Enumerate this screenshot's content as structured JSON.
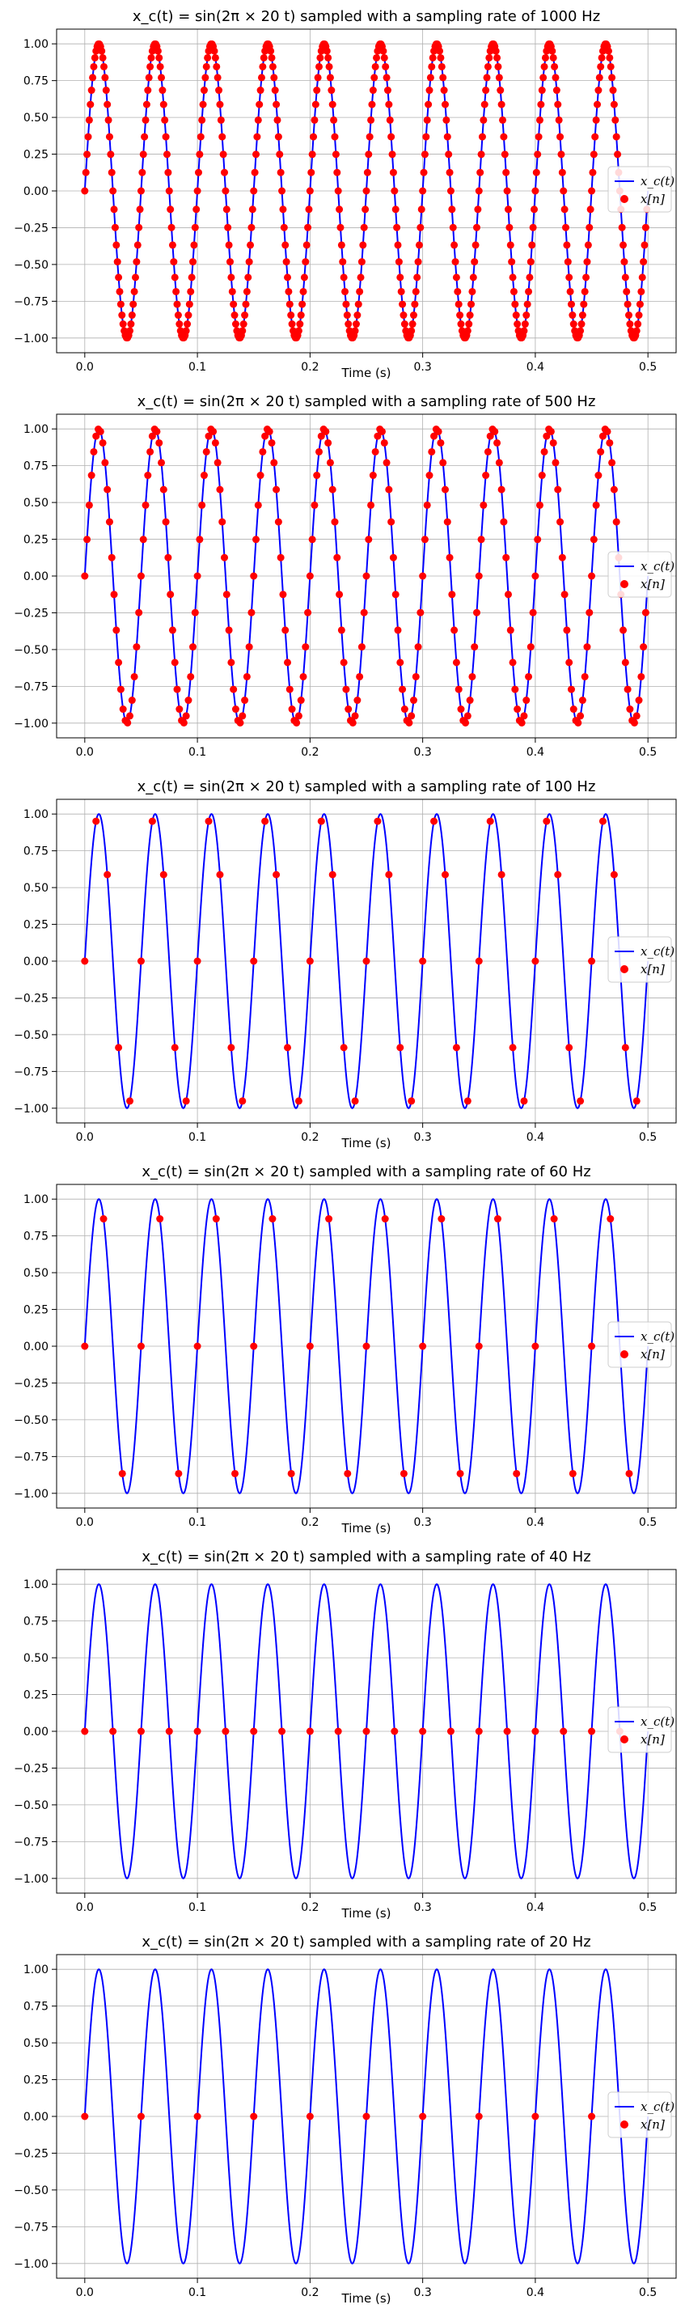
{
  "chart_data": [
    {
      "type": "line",
      "title": "x_c(t) = sin(2π × 20 t) sampled with a sampling rate of 1000 Hz",
      "signal": {
        "name": "x_c(t)",
        "frequency_hz": 20,
        "t_range": [
          0,
          0.5
        ],
        "color": "#0000ff"
      },
      "samples": {
        "name": "x[n]",
        "sampling_rate_hz": 1000,
        "color": "#ff0000"
      },
      "xlabel": "Time (s)",
      "ylabel": "",
      "xlim": [
        -0.025,
        0.525
      ],
      "ylim": [
        -1.1,
        1.1
      ],
      "xticks": [
        "0.0",
        "0.1",
        "0.2",
        "0.3",
        "0.4",
        "0.5"
      ],
      "yticks": [
        "1.00",
        "0.75",
        "0.50",
        "0.25",
        "0.00",
        "−0.25",
        "−0.50",
        "−0.75",
        "−1.00"
      ],
      "grid": true,
      "legend": "center-right"
    },
    {
      "type": "line",
      "title": "x_c(t) = sin(2π × 20 t) sampled with a sampling rate of 500 Hz",
      "signal": {
        "name": "x_c(t)",
        "frequency_hz": 20,
        "t_range": [
          0,
          0.5
        ],
        "color": "#0000ff"
      },
      "samples": {
        "name": "x[n]",
        "sampling_rate_hz": 500,
        "color": "#ff0000"
      },
      "xlabel": "",
      "ylabel": "",
      "xlim": [
        -0.025,
        0.525
      ],
      "ylim": [
        -1.1,
        1.1
      ],
      "xticks": [
        "0.0",
        "0.1",
        "0.2",
        "0.3",
        "0.4",
        "0.5"
      ],
      "yticks": [
        "1.00",
        "0.75",
        "0.50",
        "0.25",
        "0.00",
        "−0.25",
        "−0.50",
        "−0.75",
        "−1.00"
      ],
      "grid": true,
      "legend": "center-right"
    },
    {
      "type": "line",
      "title": "x_c(t) = sin(2π × 20 t) sampled with a sampling rate of 100 Hz",
      "signal": {
        "name": "x_c(t)",
        "frequency_hz": 20,
        "t_range": [
          0,
          0.5
        ],
        "color": "#0000ff"
      },
      "samples": {
        "name": "x[n]",
        "sampling_rate_hz": 100,
        "color": "#ff0000"
      },
      "xlabel": "Time (s)",
      "ylabel": "",
      "xlim": [
        -0.025,
        0.525
      ],
      "ylim": [
        -1.1,
        1.1
      ],
      "xticks": [
        "0.0",
        "0.1",
        "0.2",
        "0.3",
        "0.4",
        "0.5"
      ],
      "yticks": [
        "1.00",
        "0.75",
        "0.50",
        "0.25",
        "0.00",
        "−0.25",
        "−0.50",
        "−0.75",
        "−1.00"
      ],
      "grid": true,
      "legend": "center-right"
    },
    {
      "type": "line",
      "title": "x_c(t) = sin(2π × 20 t) sampled with a sampling rate of 60 Hz",
      "signal": {
        "name": "x_c(t)",
        "frequency_hz": 20,
        "t_range": [
          0,
          0.5
        ],
        "color": "#0000ff"
      },
      "samples": {
        "name": "x[n]",
        "sampling_rate_hz": 60,
        "color": "#ff0000"
      },
      "xlabel": "Time (s)",
      "ylabel": "",
      "xlim": [
        -0.025,
        0.525
      ],
      "ylim": [
        -1.1,
        1.1
      ],
      "xticks": [
        "0.0",
        "0.1",
        "0.2",
        "0.3",
        "0.4",
        "0.5"
      ],
      "yticks": [
        "1.00",
        "0.75",
        "0.50",
        "0.25",
        "0.00",
        "−0.25",
        "−0.50",
        "−0.75",
        "−1.00"
      ],
      "grid": true,
      "legend": "center-right"
    },
    {
      "type": "line",
      "title": "x_c(t) = sin(2π × 20 t) sampled with a sampling rate of 40 Hz",
      "signal": {
        "name": "x_c(t)",
        "frequency_hz": 20,
        "t_range": [
          0,
          0.5
        ],
        "color": "#0000ff"
      },
      "samples": {
        "name": "x[n]",
        "sampling_rate_hz": 40,
        "color": "#ff0000"
      },
      "xlabel": "Time (s)",
      "ylabel": "",
      "xlim": [
        -0.025,
        0.525
      ],
      "ylim": [
        -1.1,
        1.1
      ],
      "xticks": [
        "0.0",
        "0.1",
        "0.2",
        "0.3",
        "0.4",
        "0.5"
      ],
      "yticks": [
        "1.00",
        "0.75",
        "0.50",
        "0.25",
        "0.00",
        "−0.25",
        "−0.50",
        "−0.75",
        "−1.00"
      ],
      "grid": true,
      "legend": "center-right"
    },
    {
      "type": "line",
      "title": "x_c(t) = sin(2π × 20 t) sampled with a sampling rate of 20 Hz",
      "signal": {
        "name": "x_c(t)",
        "frequency_hz": 20,
        "t_range": [
          0,
          0.5
        ],
        "color": "#0000ff"
      },
      "samples": {
        "name": "x[n]",
        "sampling_rate_hz": 20,
        "color": "#ff0000"
      },
      "xlabel": "Time (s)",
      "ylabel": "",
      "xlim": [
        -0.025,
        0.525
      ],
      "ylim": [
        -1.1,
        1.1
      ],
      "xticks": [
        "0.0",
        "0.1",
        "0.2",
        "0.3",
        "0.4",
        "0.5"
      ],
      "yticks": [
        "1.00",
        "0.75",
        "0.50",
        "0.25",
        "0.00",
        "−0.25",
        "−0.50",
        "−0.75",
        "−1.00"
      ],
      "grid": true,
      "legend": "center-right"
    }
  ]
}
